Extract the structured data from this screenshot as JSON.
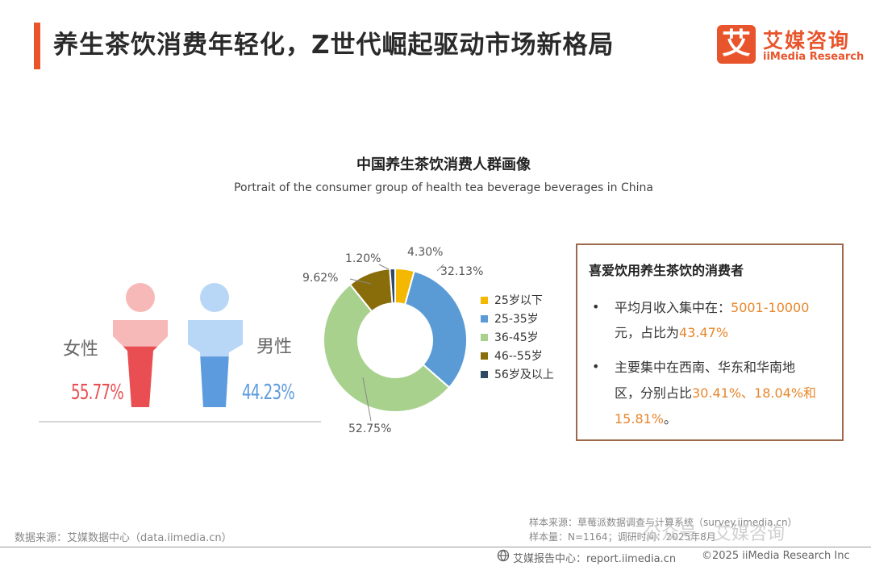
{
  "header": {
    "title": "养生茶饮消费年轻化，Z世代崛起驱动市场新格局",
    "logo_mark": "艾",
    "logo_cn": "艾媒咨询",
    "logo_en": "iiMedia Research"
  },
  "chart_data": [
    {
      "type": "pictogram",
      "categories": [
        "女性",
        "男性"
      ],
      "values": [
        55.77,
        44.23
      ],
      "value_labels": [
        "55.77%",
        "44.23%"
      ],
      "colors": {
        "female": "#e84e52",
        "female_light": "#f7b8b8",
        "male": "#5d9bdf",
        "male_light": "#b8d6f5"
      }
    },
    {
      "type": "pie",
      "title": "中国养生茶饮消费人群画像",
      "subtitle": "Portrait of the consumer group of health tea beverage beverages in China",
      "categories": [
        "25岁以下",
        "25-35岁",
        "36-45岁",
        "46--55岁",
        "56岁及以上"
      ],
      "values": [
        4.3,
        32.13,
        52.75,
        9.62,
        1.2
      ],
      "value_labels": [
        "4.30%",
        "32.13%",
        "52.75%",
        "9.62%",
        "1.20%"
      ],
      "colors": [
        "#f5b800",
        "#5b9bd5",
        "#a9d18e",
        "#8a6d0b",
        "#2e4a66"
      ],
      "legend": "right"
    }
  ],
  "info_box": {
    "heading": "喜爱饮用养生茶饮的消费者",
    "bullet_char": "•",
    "item1_line1": "平均月收入集中在：",
    "item1_hl1": "5001-10000",
    "item1_line2a": "元，占比为",
    "item1_hl2": "43.47%",
    "item2_line1": "主要集中在西南、华东和华南地",
    "item2_line2a": "区，分别占比",
    "item2_hl1": "30.41%、18.04%和",
    "item2_hl2": "15.81%",
    "item2_end": "。"
  },
  "footer": {
    "source": "数据来源：艾媒数据中心（data.iimedia.cn）",
    "sample_source": "样本来源：草莓派数据调查与计算系统（survey.iimedia.cn）",
    "sample_size": "样本量：N=1164；调研时间：2025年8月",
    "report_center": "艾媒报告中心：report.iimedia.cn",
    "copyright": "©2025  iiMedia Research  Inc",
    "watermark": "公众号 · 艾媒咨询"
  }
}
